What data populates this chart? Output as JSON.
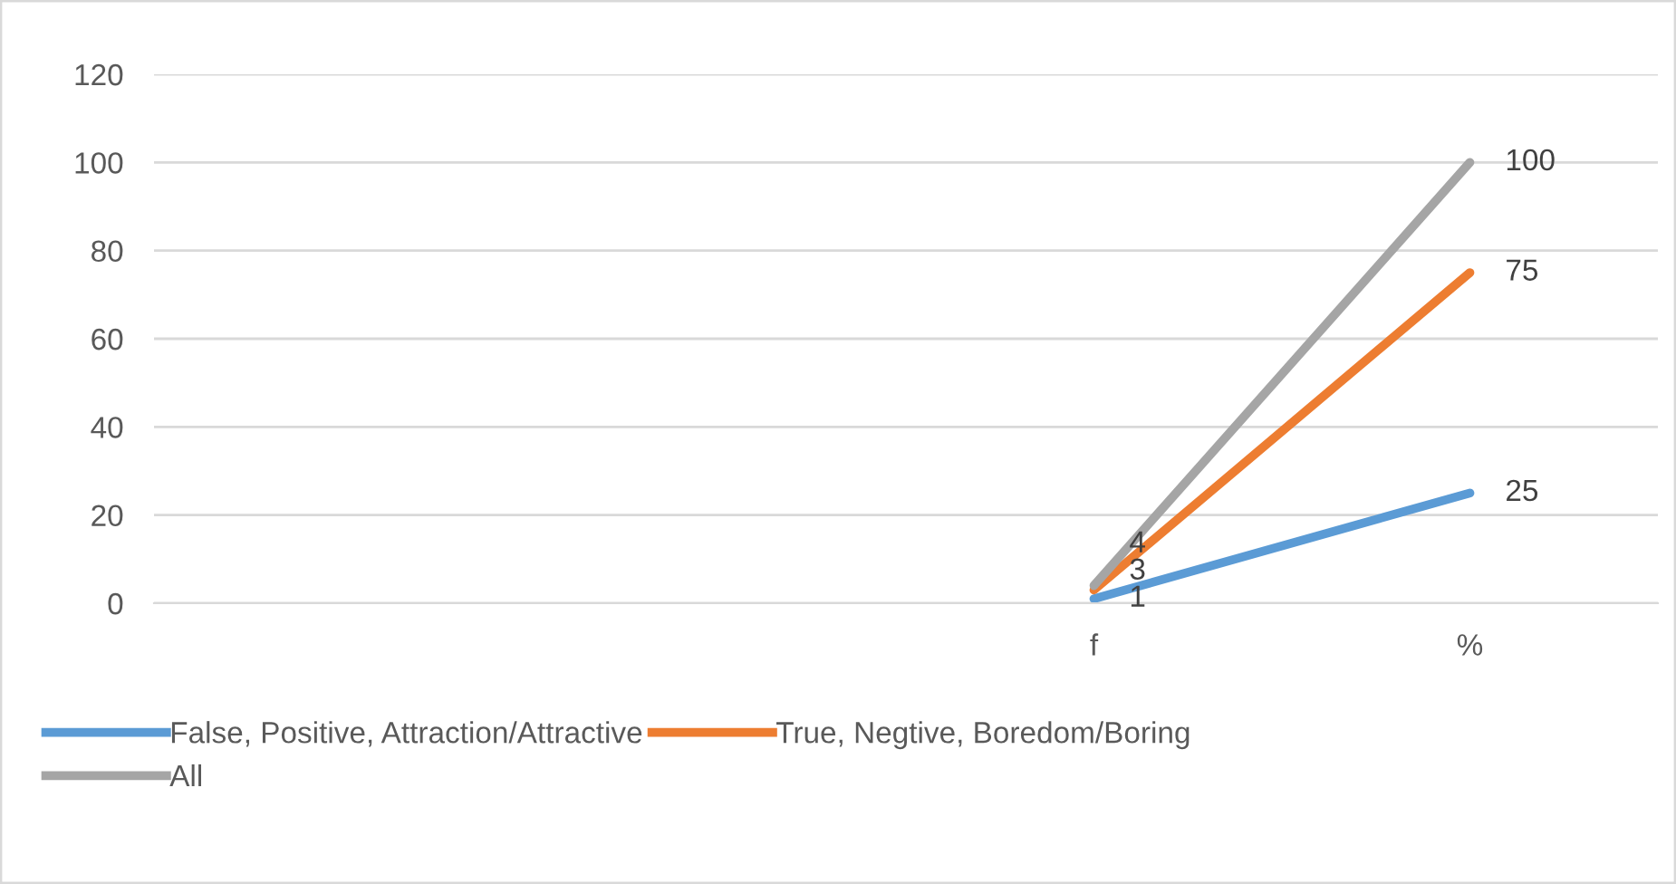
{
  "chart_data": {
    "type": "line",
    "categories": [
      null,
      null,
      "f",
      "%"
    ],
    "series": [
      {
        "name": "False, Positive, Attraction/Attractive",
        "color": "#5b9bd5",
        "values": [
          null,
          null,
          1,
          25
        ]
      },
      {
        "name": "True, Negtive, Boredom/Boring",
        "color": "#ed7d31",
        "values": [
          null,
          null,
          3,
          75
        ]
      },
      {
        "name": "All",
        "color": "#a5a5a5",
        "values": [
          null,
          null,
          4,
          100
        ]
      }
    ],
    "ylim": [
      0,
      120
    ],
    "yticks": [
      0,
      20,
      40,
      60,
      80,
      100,
      120
    ],
    "grid": "y",
    "legend": "bottom",
    "marker": "none",
    "line_style": "solid",
    "data_labels": true
  }
}
